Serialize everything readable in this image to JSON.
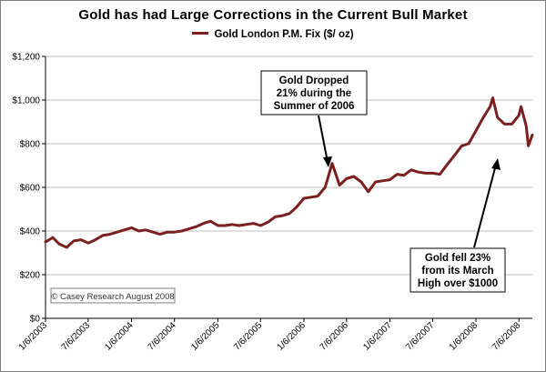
{
  "chart_data": {
    "type": "line",
    "title": "Gold has had Large Corrections in the Current Bull Market",
    "xlabel": "",
    "ylabel": "",
    "ylim": [
      0,
      1200
    ],
    "y_ticks": [
      "$0",
      "$200",
      "$400",
      "$600",
      "$800",
      "$1,000",
      "$1,200"
    ],
    "y_tick_values": [
      0,
      200,
      400,
      600,
      800,
      1000,
      1200
    ],
    "x_ticks": [
      "1/6/2003",
      "7/6/2003",
      "1/6/2004",
      "7/6/2004",
      "1/6/2005",
      "7/6/2005",
      "1/6/2006",
      "7/6/2006",
      "1/6/2007",
      "7/6/2007",
      "1/6/2008",
      "7/6/2008"
    ],
    "x_range": [
      "2003-01-06",
      "2008-09-01"
    ],
    "grid": "horizontal",
    "legend": "top-center",
    "series": [
      {
        "name": "Gold London P.M. Fix ($/ oz)",
        "color": "#7b1f1f",
        "x": [
          "2003-01-06",
          "2003-02-06",
          "2003-03-06",
          "2003-04-06",
          "2003-05-06",
          "2003-06-06",
          "2003-07-06",
          "2003-08-06",
          "2003-09-06",
          "2003-10-06",
          "2003-11-06",
          "2003-12-06",
          "2004-01-06",
          "2004-02-06",
          "2004-03-06",
          "2004-04-06",
          "2004-05-06",
          "2004-06-06",
          "2004-07-06",
          "2004-08-06",
          "2004-09-06",
          "2004-10-06",
          "2004-11-06",
          "2004-12-06",
          "2005-01-06",
          "2005-02-06",
          "2005-03-06",
          "2005-04-06",
          "2005-05-06",
          "2005-06-06",
          "2005-07-06",
          "2005-08-06",
          "2005-09-06",
          "2005-10-06",
          "2005-11-06",
          "2005-12-06",
          "2006-01-06",
          "2006-02-06",
          "2006-03-06",
          "2006-04-06",
          "2006-05-06",
          "2006-06-06",
          "2006-07-06",
          "2006-08-06",
          "2006-09-06",
          "2006-10-06",
          "2006-11-06",
          "2006-12-06",
          "2007-01-06",
          "2007-02-06",
          "2007-03-06",
          "2007-04-06",
          "2007-05-06",
          "2007-06-06",
          "2007-07-06",
          "2007-08-06",
          "2007-09-06",
          "2007-10-06",
          "2007-11-06",
          "2007-12-06",
          "2008-01-06",
          "2008-02-06",
          "2008-03-06",
          "2008-03-17",
          "2008-04-06",
          "2008-05-06",
          "2008-06-06",
          "2008-07-06",
          "2008-07-15",
          "2008-08-06",
          "2008-08-15",
          "2008-09-01"
        ],
        "values": [
          350,
          370,
          340,
          325,
          355,
          360,
          345,
          360,
          380,
          385,
          395,
          405,
          415,
          400,
          405,
          395,
          385,
          395,
          395,
          400,
          410,
          420,
          435,
          445,
          425,
          425,
          430,
          425,
          430,
          435,
          425,
          440,
          465,
          470,
          480,
          510,
          550,
          555,
          560,
          600,
          710,
          610,
          640,
          650,
          625,
          580,
          625,
          630,
          635,
          660,
          655,
          680,
          670,
          665,
          665,
          660,
          705,
          745,
          790,
          800,
          860,
          920,
          970,
          1010,
          920,
          890,
          890,
          930,
          970,
          880,
          790,
          840
        ]
      }
    ],
    "annotations": [
      {
        "text_lines": [
          "Gold Dropped",
          "21% during the",
          "Summer of 2006"
        ]
      },
      {
        "text_lines": [
          "Gold fell 23%",
          "from its March",
          "High over $1000"
        ]
      }
    ],
    "watermark": "© Casey Research August 2008"
  }
}
